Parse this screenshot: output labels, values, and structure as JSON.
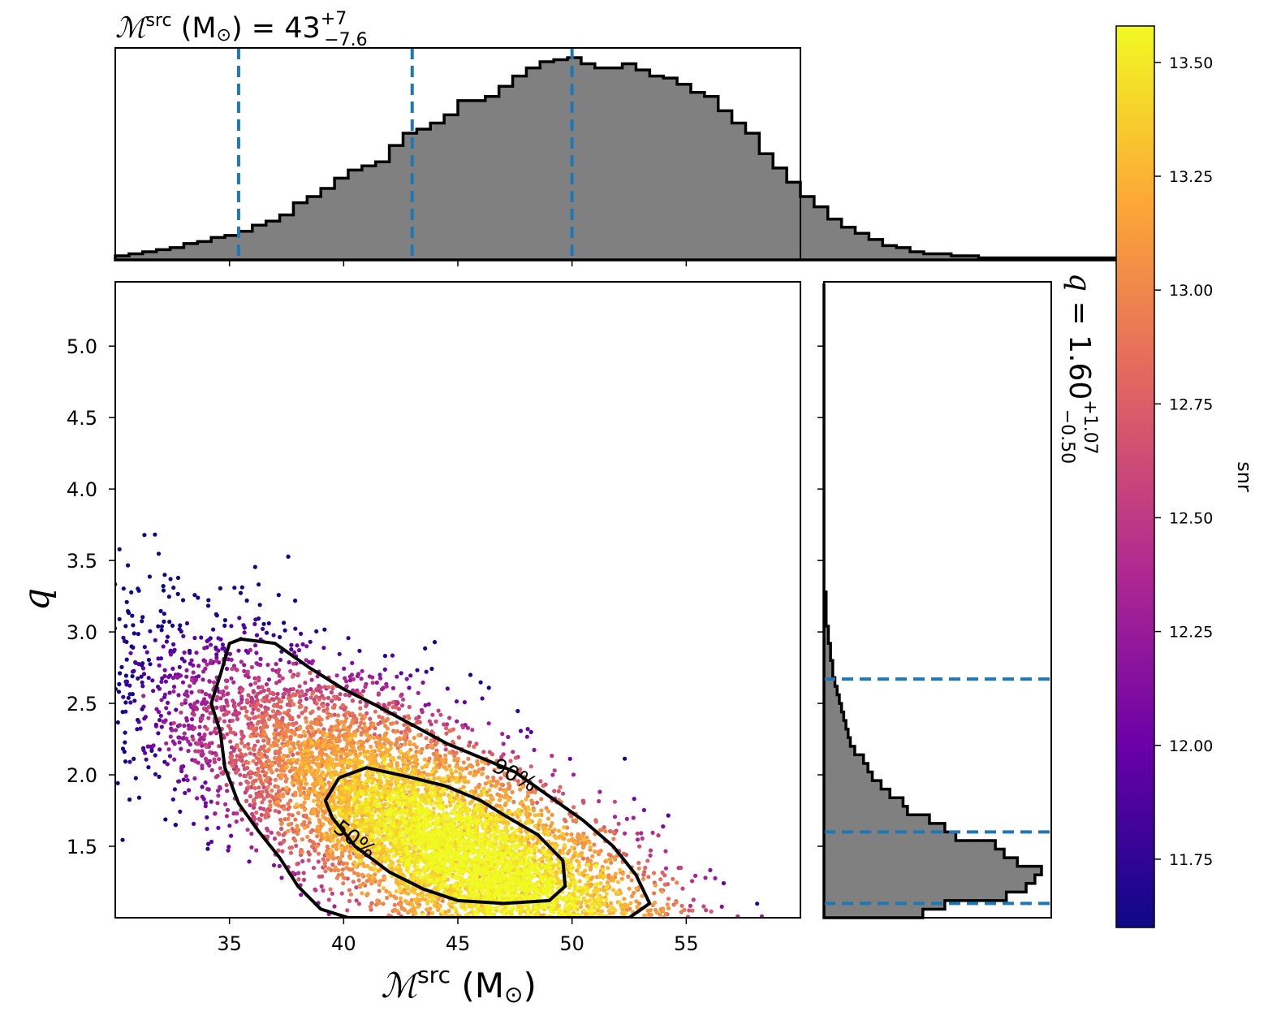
{
  "colors": {
    "hist_fill": "#808080",
    "hist_edge": "#000000",
    "quantile_line": "#1f77b4",
    "contour": "#000000",
    "colormap": [
      "#0d0887",
      "#6a00a8",
      "#b12a90",
      "#e16462",
      "#fca636",
      "#f0f921"
    ]
  },
  "chart_data": [
    {
      "type": "scatter",
      "xlabel": {
        "main": "ℳ",
        "sup": "src",
        "unit": " (M",
        "sun": "⊙",
        "close": ")"
      },
      "ylabel": "q",
      "xlim": [
        30,
        60
      ],
      "ylim": [
        1.0,
        5.45
      ],
      "xticks": [
        35,
        40,
        45,
        50,
        55
      ],
      "xtick_labels": [
        "35",
        "40",
        "45",
        "50",
        "55"
      ],
      "yticks": [
        1.5,
        2.0,
        2.5,
        3.0,
        3.5,
        4.0,
        4.5,
        5.0
      ],
      "ytick_labels": [
        "1.5",
        "2.0",
        "2.5",
        "3.0",
        "3.5",
        "4.0",
        "4.5",
        "5.0"
      ],
      "color_by": "snr",
      "contours": [
        {
          "label": "90%",
          "label_pos": [
            47.5,
            2.0
          ],
          "points": [
            [
              35.5,
              2.95
            ],
            [
              37.0,
              2.92
            ],
            [
              38.5,
              2.75
            ],
            [
              40.0,
              2.6
            ],
            [
              41.5,
              2.48
            ],
            [
              43.0,
              2.35
            ],
            [
              44.5,
              2.22
            ],
            [
              46.0,
              2.12
            ],
            [
              47.5,
              2.02
            ],
            [
              49.0,
              1.85
            ],
            [
              50.5,
              1.68
            ],
            [
              51.8,
              1.5
            ],
            [
              52.8,
              1.3
            ],
            [
              53.4,
              1.1
            ],
            [
              52.5,
              1.0
            ],
            [
              40.2,
              1.0
            ],
            [
              39.0,
              1.06
            ],
            [
              38.0,
              1.22
            ],
            [
              37.2,
              1.42
            ],
            [
              36.3,
              1.6
            ],
            [
              35.4,
              1.8
            ],
            [
              34.8,
              2.05
            ],
            [
              34.6,
              2.3
            ],
            [
              34.2,
              2.5
            ],
            [
              34.6,
              2.7
            ],
            [
              35.0,
              2.92
            ],
            [
              35.5,
              2.95
            ]
          ]
        },
        {
          "label": "50%",
          "label_pos": [
            40.5,
            1.55
          ],
          "points": [
            [
              39.8,
              1.98
            ],
            [
              41.0,
              2.05
            ],
            [
              43.0,
              1.98
            ],
            [
              44.5,
              1.92
            ],
            [
              46.0,
              1.82
            ],
            [
              47.0,
              1.72
            ],
            [
              48.5,
              1.58
            ],
            [
              49.6,
              1.4
            ],
            [
              49.7,
              1.22
            ],
            [
              49.0,
              1.12
            ],
            [
              47.0,
              1.1
            ],
            [
              45.0,
              1.12
            ],
            [
              43.5,
              1.2
            ],
            [
              42.0,
              1.32
            ],
            [
              40.5,
              1.5
            ],
            [
              39.5,
              1.7
            ],
            [
              39.2,
              1.82
            ],
            [
              39.8,
              1.98
            ]
          ]
        }
      ]
    },
    {
      "type": "histogram",
      "title": {
        "main": "ℳ",
        "sup": "src",
        "unit": " (M",
        "sun": "⊙",
        "close": ")",
        "eq": " = 43",
        "plus": "+7",
        "minus": "−7.6"
      },
      "bin_start": 30,
      "bin_width": 0.6,
      "counts": [
        2,
        3,
        4,
        5,
        6,
        8,
        9,
        11,
        12,
        14,
        17,
        19,
        22,
        28,
        31,
        35,
        40,
        44,
        46,
        48,
        56,
        62,
        64,
        67,
        71,
        78,
        78,
        80,
        85,
        90,
        94,
        97,
        98,
        99,
        96,
        94,
        94,
        96,
        93,
        90,
        89,
        86,
        82,
        80,
        73,
        67,
        62,
        52,
        45,
        38,
        31,
        26,
        20,
        16,
        13,
        10,
        7,
        6,
        4,
        3,
        3,
        2,
        2,
        1,
        1,
        1,
        1,
        1,
        1,
        1,
        1,
        1,
        1,
        1
      ],
      "quantiles": [
        35.4,
        43.0,
        50.0
      ],
      "xlim": [
        30,
        60
      ],
      "xticks": [
        35,
        40,
        45,
        50,
        55
      ]
    },
    {
      "type": "histogram",
      "orientation": "horizontal",
      "title": {
        "main": "q",
        "eq": " = 1.60",
        "plus": "+1.07",
        "minus": "−0.50"
      },
      "bin_start": 1.0,
      "bin_width": 0.06,
      "counts": [
        45,
        55,
        83,
        92,
        96,
        99,
        88,
        82,
        78,
        60,
        55,
        48,
        38,
        36,
        30,
        26,
        22,
        20,
        18,
        14,
        12,
        11,
        10,
        9,
        8,
        7,
        6,
        5,
        4,
        4,
        3,
        3,
        2,
        2,
        1,
        1,
        1,
        1,
        0,
        0,
        0,
        0,
        0,
        0,
        0,
        0,
        0,
        0,
        0,
        0,
        0,
        0,
        0,
        0,
        0,
        0,
        0,
        0,
        0,
        0,
        0,
        0,
        0,
        0,
        0,
        0,
        0,
        0,
        0,
        0,
        0,
        0,
        0,
        0
      ],
      "quantiles": [
        1.1,
        1.6,
        2.67
      ],
      "ylim": [
        1.0,
        5.45
      ],
      "yticks": [
        1.5,
        2.0,
        2.5,
        3.0,
        3.5,
        4.0,
        4.5,
        5.0
      ]
    },
    {
      "type": "colorbar",
      "label": "snr",
      "range": [
        11.6,
        13.58
      ],
      "ticks": [
        11.75,
        12.0,
        12.25,
        12.5,
        12.75,
        13.0,
        13.25,
        13.5
      ],
      "tick_labels": [
        "11.75",
        "12.00",
        "12.25",
        "12.50",
        "12.75",
        "13.00",
        "13.25",
        "13.50"
      ]
    }
  ]
}
